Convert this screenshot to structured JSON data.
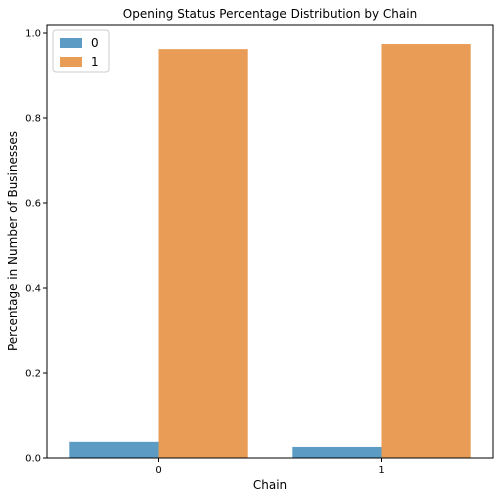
{
  "chart_data": {
    "type": "bar",
    "title": "Opening Status Percentage Distribution by Chain",
    "xlabel": "Chain",
    "ylabel": "Percentage in Number of Businesses",
    "categories": [
      "0",
      "1"
    ],
    "series": [
      {
        "name": "0",
        "values": [
          0.038,
          0.026
        ],
        "color": "#5b9bc4"
      },
      {
        "name": "1",
        "values": [
          0.962,
          0.974
        ],
        "color": "#e99c55"
      }
    ],
    "ylim": [
      0,
      1.0
    ],
    "yticks": [
      "0.0",
      "0.2",
      "0.4",
      "0.6",
      "0.8",
      "1.0"
    ],
    "legend_position": "top-left",
    "grid": false
  }
}
